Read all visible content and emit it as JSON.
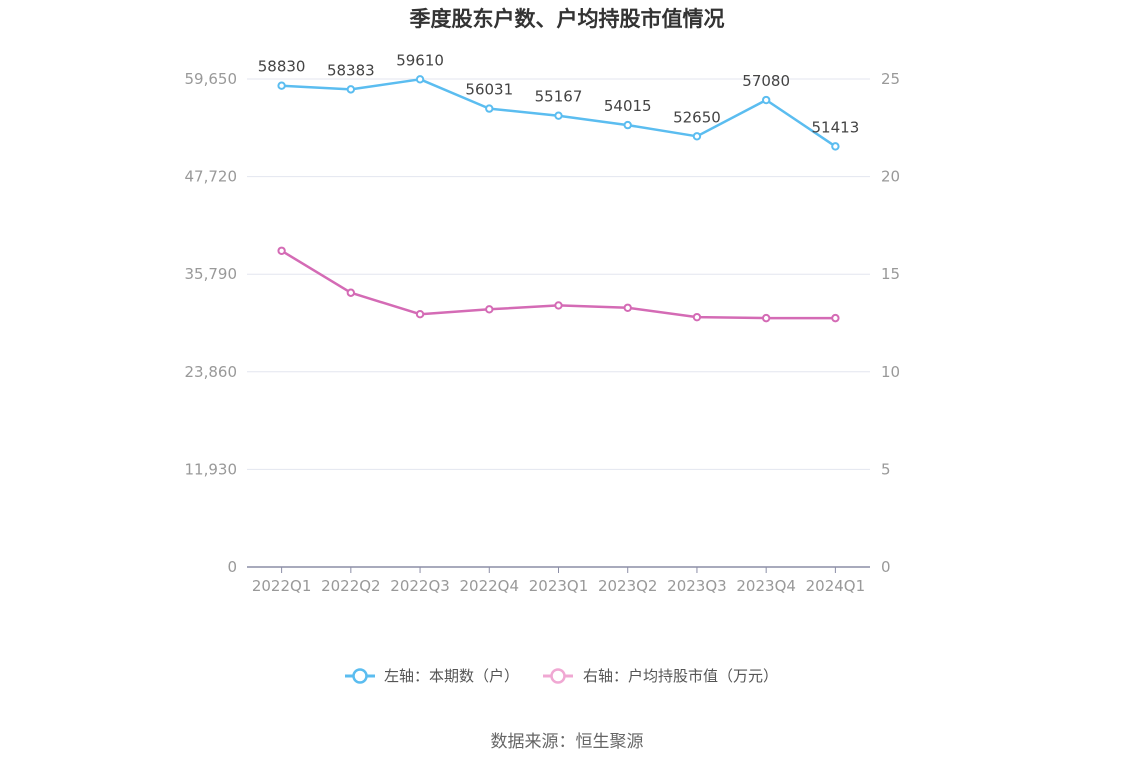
{
  "chart_data": {
    "type": "line",
    "title": "季度股东户数、户均持股市值情况",
    "categories": [
      "2022Q1",
      "2022Q2",
      "2022Q3",
      "2022Q4",
      "2023Q1",
      "2023Q2",
      "2023Q3",
      "2023Q4",
      "2024Q1"
    ],
    "series": [
      {
        "name": "左轴：本期数（户）",
        "axis": "left",
        "color": "#5bbdf0",
        "values": [
          58830,
          58383,
          59610,
          56031,
          55167,
          54015,
          52650,
          57080,
          51413
        ],
        "labels": [
          "58830",
          "58383",
          "59610",
          "56031",
          "55167",
          "54015",
          "52650",
          "57080",
          "51413"
        ]
      },
      {
        "name": "右轴：户均持股市值（万元）",
        "axis": "right",
        "color": "#d46bb5",
        "legend_color": "#f0a8d3",
        "values": [
          16.2,
          14.05,
          12.95,
          13.2,
          13.4,
          13.28,
          12.8,
          12.75,
          12.75
        ]
      }
    ],
    "left_axis": {
      "ylim": [
        0,
        59650
      ],
      "ticks": [
        0,
        11930,
        23860,
        35790,
        47720,
        59650
      ],
      "tick_labels": [
        "0",
        "11,930",
        "23,860",
        "35,790",
        "47,720",
        "59,650"
      ]
    },
    "right_axis": {
      "ylim": [
        0,
        25
      ],
      "ticks": [
        0,
        5,
        10,
        15,
        20,
        25
      ],
      "tick_labels": [
        "0",
        "5",
        "10",
        "15",
        "20",
        "25"
      ]
    },
    "grid": true,
    "legend_position": "bottom"
  },
  "footer": {
    "source": "数据来源：恒生聚源"
  }
}
